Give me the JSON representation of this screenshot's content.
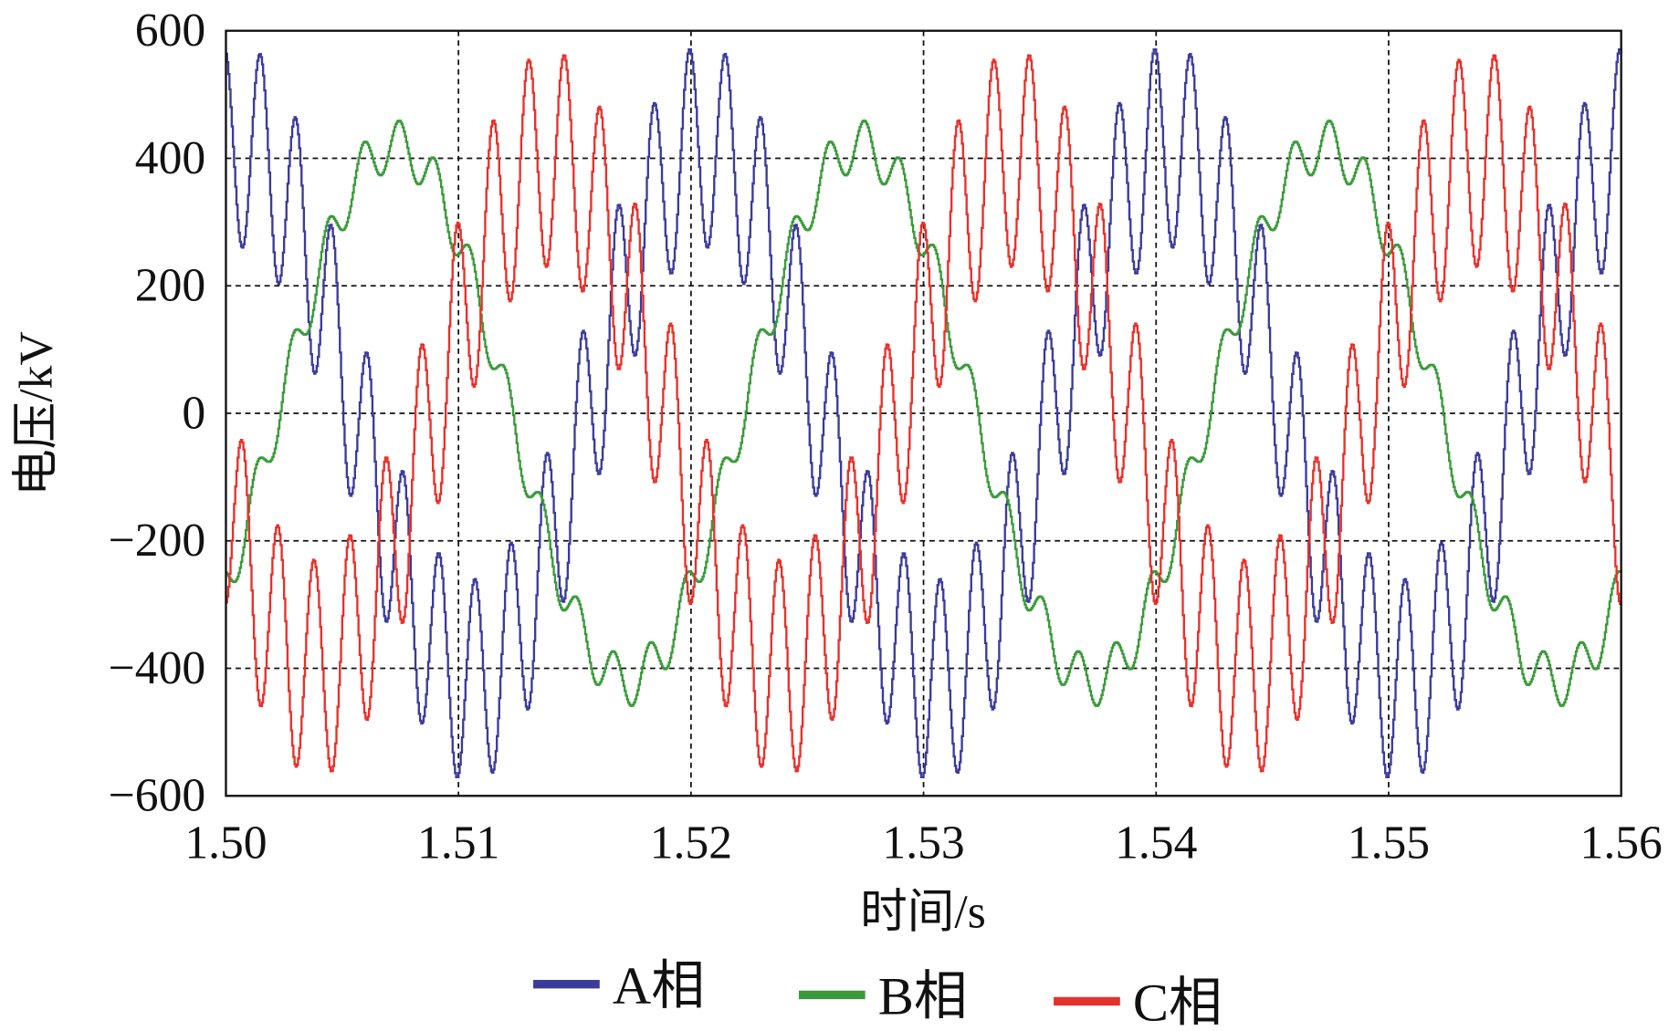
{
  "chart_data": {
    "type": "line",
    "title": "",
    "xlabel": "时间/s",
    "ylabel": "电压/kV",
    "xlim": [
      1.5,
      1.56
    ],
    "ylim": [
      -600,
      600
    ],
    "xticks": [
      "1.50",
      "1.51",
      "1.52",
      "1.53",
      "1.54",
      "1.55",
      "1.56"
    ],
    "xtick_values": [
      1.5,
      1.51,
      1.52,
      1.53,
      1.54,
      1.55,
      1.56
    ],
    "yticks": [
      "600",
      "400",
      "200",
      "0",
      "−200",
      "−400",
      "−600"
    ],
    "ytick_values": [
      600,
      400,
      200,
      0,
      -200,
      -400,
      -600
    ],
    "grid": true,
    "legend_placement": "bottom",
    "sample_step_s": 5e-05,
    "series": [
      {
        "name": "A相",
        "color": "#3b3b9a",
        "fundamental_kV": 420,
        "fundamental_hz": 50,
        "phase_deg": -10,
        "ripple_kV": 160,
        "ripple_hz": 650,
        "ripple_phase_deg": 20
      },
      {
        "name": "B相",
        "color": "#3a9a3a",
        "fundamental_kV": 420,
        "fundamental_hz": 50,
        "phase_deg": -130,
        "ripple_kV": 40,
        "ripple_hz": 650,
        "ripple_phase_deg": 60
      },
      {
        "name": "C相",
        "color": "#e8302a",
        "fundamental_kV": 400,
        "fundamental_hz": 50,
        "phase_deg": 110,
        "ripple_kV": 170,
        "ripple_hz": 650,
        "ripple_phase_deg": 200
      }
    ]
  }
}
